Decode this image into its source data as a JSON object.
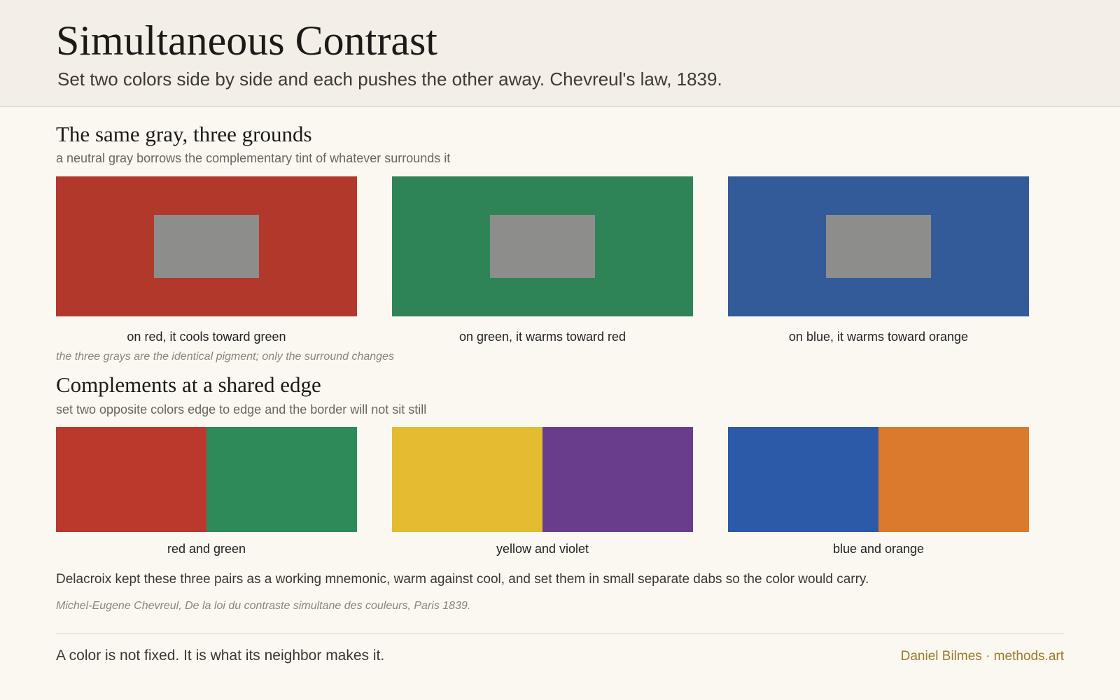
{
  "header": {
    "title": "Simultaneous Contrast",
    "subtitle": "Set two colors side by side and each pushes the other away. Chevreul's law, 1839."
  },
  "sections": [
    {
      "heading": "The same gray, three grounds",
      "subheading": "a neutral gray borrows the complementary tint of whatever surrounds it",
      "captions": [
        "on red, it cools toward green",
        "on green, it warms toward red",
        "on blue, it warms toward orange"
      ],
      "note": "the three grays are the identical pigment; only the surround changes"
    },
    {
      "heading": "Complements at a shared edge",
      "subheading": "set two opposite colors edge to edge and the border will not sit still",
      "captions": [
        "red and green",
        "yellow and violet",
        "blue and orange"
      ]
    }
  ],
  "paragraph": "Delacroix kept these three pairs as a working mnemonic, warm against cool, and set them in small separate dabs so the color would carry.",
  "citation": "Michel-Eugene Chevreul, De la loi du contraste simultane des couleurs, Paris 1839.",
  "footer": {
    "quote": "A color is not fixed. It is what its neighbor makes it.",
    "credit": "Daniel Bilmes · methods.art"
  }
}
